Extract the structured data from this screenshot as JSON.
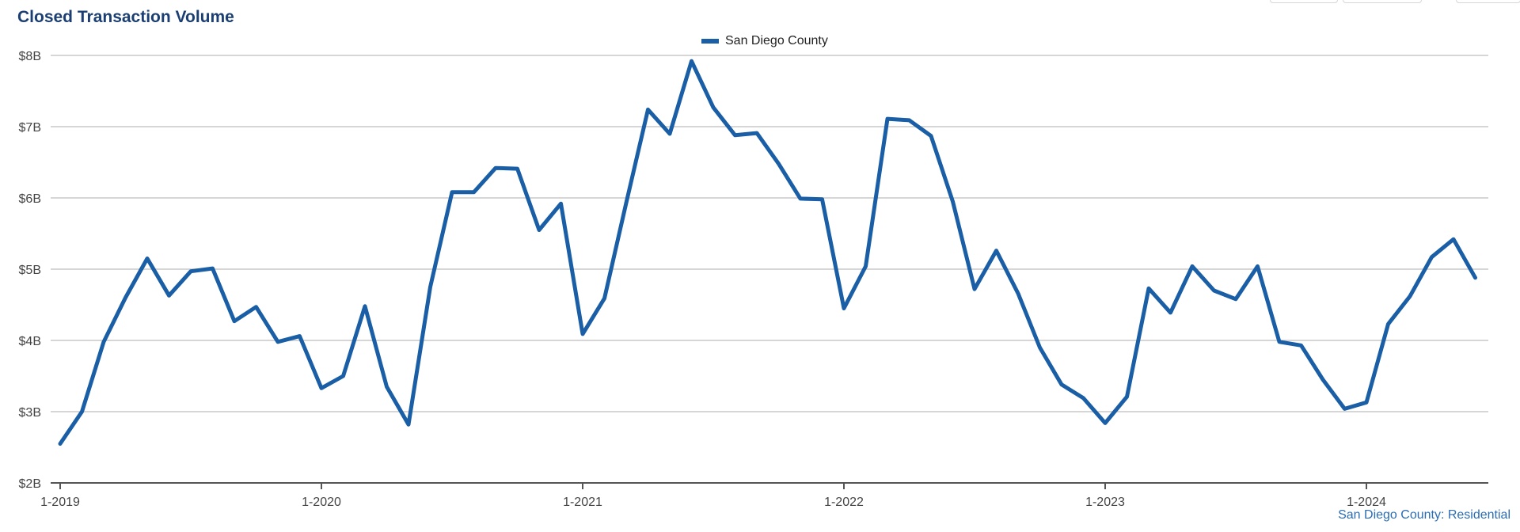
{
  "chart_data": {
    "type": "line",
    "title": "Closed Transaction Volume",
    "xlabel": "",
    "ylabel": "",
    "y_unit": "USD billions",
    "ylim": [
      2,
      8
    ],
    "y_ticks": [
      2,
      3,
      4,
      5,
      6,
      7,
      8
    ],
    "y_tick_labels": [
      "$2B",
      "$3B",
      "$4B",
      "$5B",
      "$6B",
      "$7B",
      "$8B"
    ],
    "x_tick_labels": [
      "1-2019",
      "1-2020",
      "1-2021",
      "1-2022",
      "1-2023",
      "1-2024"
    ],
    "x_start": "2019-01",
    "x_end": "2024-06",
    "grid": true,
    "legend_position": "top-center",
    "series_color": "#1a5ea6",
    "series": [
      {
        "name": "San Diego County",
        "values": [
          2.55,
          3.0,
          3.98,
          4.6,
          5.15,
          4.63,
          4.97,
          5.01,
          4.27,
          4.47,
          3.98,
          4.06,
          3.33,
          3.5,
          4.48,
          3.35,
          2.82,
          4.75,
          6.08,
          6.08,
          6.42,
          6.41,
          5.55,
          5.92,
          4.09,
          4.59,
          5.93,
          7.24,
          6.9,
          7.92,
          7.27,
          6.88,
          6.91,
          6.48,
          5.99,
          5.98,
          4.45,
          5.04,
          7.11,
          7.09,
          6.87,
          5.95,
          4.72,
          5.26,
          4.66,
          3.9,
          3.38,
          3.19,
          2.84,
          3.21,
          4.73,
          4.39,
          5.04,
          4.7,
          4.58,
          5.04,
          3.98,
          3.93,
          3.45,
          3.04,
          3.13,
          4.23,
          4.62,
          5.17,
          5.42,
          4.88
        ]
      }
    ]
  },
  "source_note": "San Diego County: Residential"
}
